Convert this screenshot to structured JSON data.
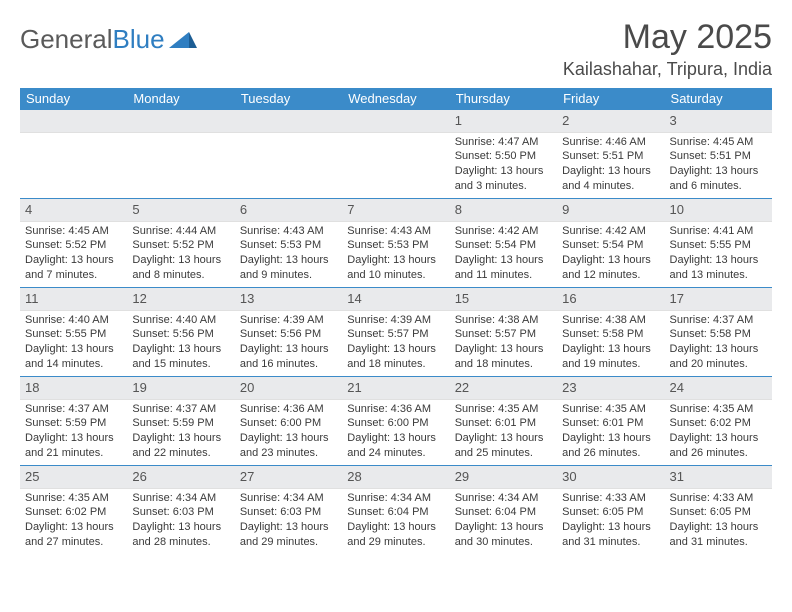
{
  "logo": {
    "text1": "General",
    "text2": "Blue"
  },
  "title": "May 2025",
  "subtitle": "Kailashahar, Tripura, India",
  "weekdays": [
    "Sunday",
    "Monday",
    "Tuesday",
    "Wednesday",
    "Thursday",
    "Friday",
    "Saturday"
  ],
  "colors": {
    "header_bg": "#3b8bc9",
    "daynum_bg": "#e9eaec",
    "text": "#3a3a3a"
  },
  "weeks": [
    [
      {
        "n": "",
        "sr": "",
        "ss": "",
        "dl": ""
      },
      {
        "n": "",
        "sr": "",
        "ss": "",
        "dl": ""
      },
      {
        "n": "",
        "sr": "",
        "ss": "",
        "dl": ""
      },
      {
        "n": "",
        "sr": "",
        "ss": "",
        "dl": ""
      },
      {
        "n": "1",
        "sr": "Sunrise: 4:47 AM",
        "ss": "Sunset: 5:50 PM",
        "dl": "Daylight: 13 hours and 3 minutes."
      },
      {
        "n": "2",
        "sr": "Sunrise: 4:46 AM",
        "ss": "Sunset: 5:51 PM",
        "dl": "Daylight: 13 hours and 4 minutes."
      },
      {
        "n": "3",
        "sr": "Sunrise: 4:45 AM",
        "ss": "Sunset: 5:51 PM",
        "dl": "Daylight: 13 hours and 6 minutes."
      }
    ],
    [
      {
        "n": "4",
        "sr": "Sunrise: 4:45 AM",
        "ss": "Sunset: 5:52 PM",
        "dl": "Daylight: 13 hours and 7 minutes."
      },
      {
        "n": "5",
        "sr": "Sunrise: 4:44 AM",
        "ss": "Sunset: 5:52 PM",
        "dl": "Daylight: 13 hours and 8 minutes."
      },
      {
        "n": "6",
        "sr": "Sunrise: 4:43 AM",
        "ss": "Sunset: 5:53 PM",
        "dl": "Daylight: 13 hours and 9 minutes."
      },
      {
        "n": "7",
        "sr": "Sunrise: 4:43 AM",
        "ss": "Sunset: 5:53 PM",
        "dl": "Daylight: 13 hours and 10 minutes."
      },
      {
        "n": "8",
        "sr": "Sunrise: 4:42 AM",
        "ss": "Sunset: 5:54 PM",
        "dl": "Daylight: 13 hours and 11 minutes."
      },
      {
        "n": "9",
        "sr": "Sunrise: 4:42 AM",
        "ss": "Sunset: 5:54 PM",
        "dl": "Daylight: 13 hours and 12 minutes."
      },
      {
        "n": "10",
        "sr": "Sunrise: 4:41 AM",
        "ss": "Sunset: 5:55 PM",
        "dl": "Daylight: 13 hours and 13 minutes."
      }
    ],
    [
      {
        "n": "11",
        "sr": "Sunrise: 4:40 AM",
        "ss": "Sunset: 5:55 PM",
        "dl": "Daylight: 13 hours and 14 minutes."
      },
      {
        "n": "12",
        "sr": "Sunrise: 4:40 AM",
        "ss": "Sunset: 5:56 PM",
        "dl": "Daylight: 13 hours and 15 minutes."
      },
      {
        "n": "13",
        "sr": "Sunrise: 4:39 AM",
        "ss": "Sunset: 5:56 PM",
        "dl": "Daylight: 13 hours and 16 minutes."
      },
      {
        "n": "14",
        "sr": "Sunrise: 4:39 AM",
        "ss": "Sunset: 5:57 PM",
        "dl": "Daylight: 13 hours and 18 minutes."
      },
      {
        "n": "15",
        "sr": "Sunrise: 4:38 AM",
        "ss": "Sunset: 5:57 PM",
        "dl": "Daylight: 13 hours and 18 minutes."
      },
      {
        "n": "16",
        "sr": "Sunrise: 4:38 AM",
        "ss": "Sunset: 5:58 PM",
        "dl": "Daylight: 13 hours and 19 minutes."
      },
      {
        "n": "17",
        "sr": "Sunrise: 4:37 AM",
        "ss": "Sunset: 5:58 PM",
        "dl": "Daylight: 13 hours and 20 minutes."
      }
    ],
    [
      {
        "n": "18",
        "sr": "Sunrise: 4:37 AM",
        "ss": "Sunset: 5:59 PM",
        "dl": "Daylight: 13 hours and 21 minutes."
      },
      {
        "n": "19",
        "sr": "Sunrise: 4:37 AM",
        "ss": "Sunset: 5:59 PM",
        "dl": "Daylight: 13 hours and 22 minutes."
      },
      {
        "n": "20",
        "sr": "Sunrise: 4:36 AM",
        "ss": "Sunset: 6:00 PM",
        "dl": "Daylight: 13 hours and 23 minutes."
      },
      {
        "n": "21",
        "sr": "Sunrise: 4:36 AM",
        "ss": "Sunset: 6:00 PM",
        "dl": "Daylight: 13 hours and 24 minutes."
      },
      {
        "n": "22",
        "sr": "Sunrise: 4:35 AM",
        "ss": "Sunset: 6:01 PM",
        "dl": "Daylight: 13 hours and 25 minutes."
      },
      {
        "n": "23",
        "sr": "Sunrise: 4:35 AM",
        "ss": "Sunset: 6:01 PM",
        "dl": "Daylight: 13 hours and 26 minutes."
      },
      {
        "n": "24",
        "sr": "Sunrise: 4:35 AM",
        "ss": "Sunset: 6:02 PM",
        "dl": "Daylight: 13 hours and 26 minutes."
      }
    ],
    [
      {
        "n": "25",
        "sr": "Sunrise: 4:35 AM",
        "ss": "Sunset: 6:02 PM",
        "dl": "Daylight: 13 hours and 27 minutes."
      },
      {
        "n": "26",
        "sr": "Sunrise: 4:34 AM",
        "ss": "Sunset: 6:03 PM",
        "dl": "Daylight: 13 hours and 28 minutes."
      },
      {
        "n": "27",
        "sr": "Sunrise: 4:34 AM",
        "ss": "Sunset: 6:03 PM",
        "dl": "Daylight: 13 hours and 29 minutes."
      },
      {
        "n": "28",
        "sr": "Sunrise: 4:34 AM",
        "ss": "Sunset: 6:04 PM",
        "dl": "Daylight: 13 hours and 29 minutes."
      },
      {
        "n": "29",
        "sr": "Sunrise: 4:34 AM",
        "ss": "Sunset: 6:04 PM",
        "dl": "Daylight: 13 hours and 30 minutes."
      },
      {
        "n": "30",
        "sr": "Sunrise: 4:33 AM",
        "ss": "Sunset: 6:05 PM",
        "dl": "Daylight: 13 hours and 31 minutes."
      },
      {
        "n": "31",
        "sr": "Sunrise: 4:33 AM",
        "ss": "Sunset: 6:05 PM",
        "dl": "Daylight: 13 hours and 31 minutes."
      }
    ]
  ]
}
